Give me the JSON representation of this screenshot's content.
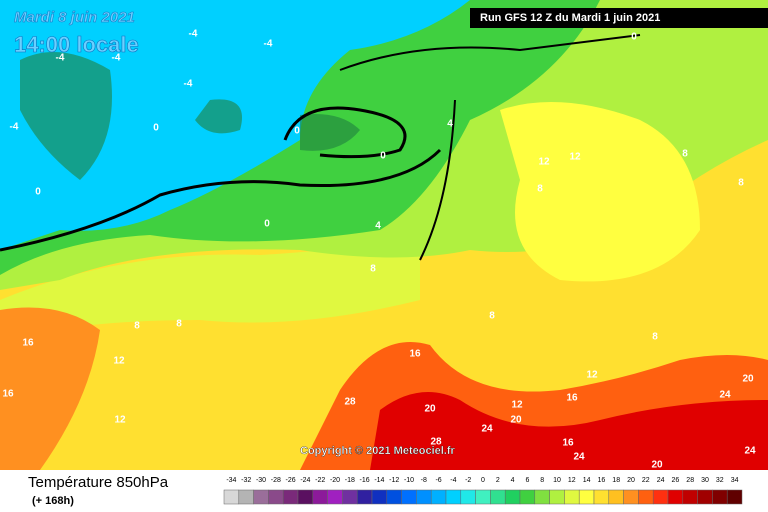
{
  "header": {
    "date": "Mardi 8 juin 2021",
    "time": "14:00 locale",
    "run": "Run GFS 12 Z du Mardi 1 juin 2021"
  },
  "copyright": "Copyright © 2021 Meteociel.fr",
  "legend": {
    "title": "Température 850hPa",
    "lead": "(+ 168h)",
    "values": [
      -34,
      -32,
      -30,
      -28,
      -26,
      -24,
      -22,
      -20,
      -18,
      -16,
      -14,
      -12,
      -10,
      -8,
      -6,
      -4,
      -2,
      0,
      2,
      4,
      6,
      8,
      10,
      12,
      14,
      16,
      18,
      20,
      22,
      24,
      26,
      28,
      30,
      32,
      34
    ],
    "colors": [
      "#d8d8d8",
      "#b4b4b4",
      "#9a6e9a",
      "#8a4a8a",
      "#7a2a7a",
      "#5a1060",
      "#8c1a9a",
      "#a020c0",
      "#7030a0",
      "#3020a0",
      "#1030c0",
      "#0050e0",
      "#0070ff",
      "#0090ff",
      "#00b0ff",
      "#00d0ff",
      "#20e8e8",
      "#40f0c0",
      "#30e090",
      "#20d060",
      "#40d040",
      "#80e040",
      "#b0f040",
      "#e0f840",
      "#ffff40",
      "#ffe030",
      "#ffc020",
      "#ff9020",
      "#ff6010",
      "#ff3010",
      "#e00000",
      "#c00000",
      "#a00000",
      "#800000",
      "#600000"
    ]
  },
  "contour_labels": [
    "-4",
    "-4",
    "-4",
    "-4",
    "-4",
    "-4",
    "0",
    "0",
    "0",
    "0",
    "0",
    "0",
    "4",
    "4",
    "8",
    "8",
    "8",
    "8",
    "8",
    "8",
    "8",
    "8",
    "12",
    "12",
    "12",
    "12",
    "12",
    "12",
    "16",
    "16",
    "16",
    "16",
    "16",
    "20",
    "20",
    "20",
    "20",
    "24",
    "24",
    "24",
    "24",
    "28",
    "28"
  ]
}
